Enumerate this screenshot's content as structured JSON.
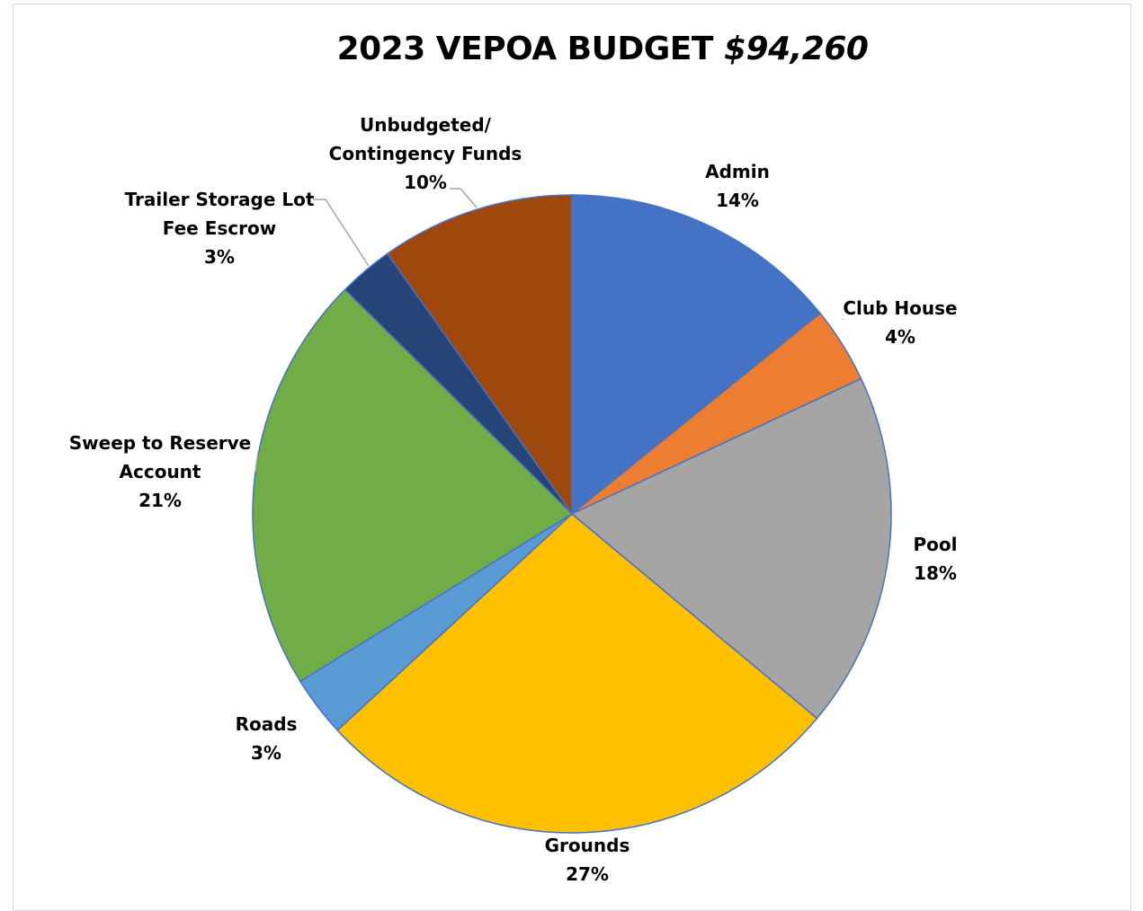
{
  "chart_data": {
    "type": "pie",
    "title": "2023 VEPOA BUDGET",
    "title_amount": "$94,260",
    "slices": [
      {
        "label": "Admin",
        "label_lines": [
          "Admin"
        ],
        "percent_label": "14%",
        "value": 14.3,
        "color": "#4472c4"
      },
      {
        "label": "Club House",
        "label_lines": [
          "Club House"
        ],
        "percent_label": "4%",
        "value": 3.9,
        "color": "#ed7d31"
      },
      {
        "label": "Pool",
        "label_lines": [
          "Pool"
        ],
        "percent_label": "18%",
        "value": 18.2,
        "color": "#a5a5a5"
      },
      {
        "label": "Grounds",
        "label_lines": [
          "Grounds"
        ],
        "percent_label": "27%",
        "value": 27.3,
        "color": "#ffc000"
      },
      {
        "label": "Roads",
        "label_lines": [
          "Roads"
        ],
        "percent_label": "3%",
        "value": 3.1,
        "color": "#5b9bd5"
      },
      {
        "label": "Sweep to Reserve Account",
        "label_lines": [
          "Sweep to Reserve",
          "Account"
        ],
        "percent_label": "21%",
        "value": 21.4,
        "color": "#70ad47"
      },
      {
        "label": "Trailer Storage Lot Fee Escrow",
        "label_lines": [
          "Trailer Storage Lot",
          "Fee Escrow"
        ],
        "percent_label": "3%",
        "value": 2.8,
        "color": "#264478"
      },
      {
        "label": "Unbudgeted/ Contingency Funds",
        "label_lines": [
          "Unbudgeted/",
          "Contingency Funds"
        ],
        "percent_label": "10%",
        "value": 9.9,
        "color": "#9e480e"
      }
    ],
    "legend": "none"
  }
}
